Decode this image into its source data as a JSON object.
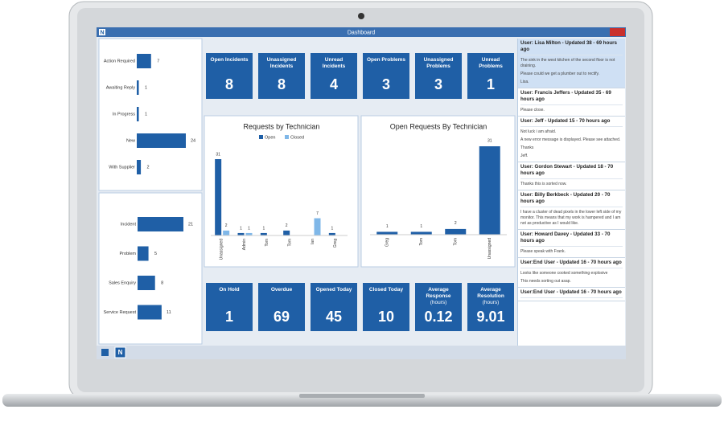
{
  "window": {
    "title": "Dashboard",
    "app_icon": "N"
  },
  "status_chart": {
    "type": "bar",
    "orientation": "horizontal",
    "color": "#1f5fa6",
    "categories": [
      "Action Required",
      "Awaiting Reply",
      "In Progress",
      "New",
      "With Supplier"
    ],
    "values": [
      7,
      1,
      1,
      24,
      2
    ]
  },
  "type_chart": {
    "type": "bar",
    "orientation": "horizontal",
    "color": "#1f5fa6",
    "categories": [
      "Incident",
      "Problem",
      "Sales Enquiry",
      "Service Request"
    ],
    "values": [
      21,
      5,
      8,
      11
    ]
  },
  "top_tiles": [
    {
      "label": "Open Incidents",
      "value": 8
    },
    {
      "label": "Unassigned Incidents",
      "value": 8
    },
    {
      "label": "Unread Incidents",
      "value": 4
    },
    {
      "label": "Open Problems",
      "value": 3
    },
    {
      "label": "Unassigned Problems",
      "value": 3
    },
    {
      "label": "Unread Problems",
      "value": 1
    }
  ],
  "bottom_tiles": [
    {
      "label": "On Hold",
      "value": 1
    },
    {
      "label": "Overdue",
      "value": 69
    },
    {
      "label": "Opened Today",
      "value": 45
    },
    {
      "label": "Closed Today",
      "value": 10
    },
    {
      "label": "Average Response",
      "sublabel": "(hours)",
      "value": 0.12
    },
    {
      "label": "Average Resolution",
      "sublabel": "(hours)",
      "value": 9.01
    }
  ],
  "requests_chart": {
    "type": "bar",
    "title": "Requests by Technician",
    "categories": [
      "Unassigned",
      "Admin",
      "Tom",
      "Tom",
      "Ian",
      "Greg"
    ],
    "series": [
      {
        "name": "Open",
        "color": "#1f5fa6",
        "values": [
          31,
          1,
          1,
          2,
          null,
          1
        ]
      },
      {
        "name": "Closed",
        "color": "#7fb7e8",
        "values": [
          2,
          1,
          null,
          null,
          7,
          null
        ]
      }
    ]
  },
  "open_requests_chart": {
    "type": "bar",
    "title": "Open Requests By Technician",
    "color": "#1f5fa6",
    "categories": [
      "Greg",
      "Tom",
      "Tom",
      "Unassigned"
    ],
    "values": [
      1,
      1,
      2,
      31
    ]
  },
  "feed": [
    {
      "header": "User: Lisa Milton - Updated 38 - 69 hours ago",
      "highlight": true,
      "body": [
        "The sink in the west kitchen of the second floor is not draining.",
        "Please could we get a plumber out to rectify.",
        "Lisa."
      ]
    },
    {
      "header": "User: Francis Jeffers - Updated 35 - 69 hours ago",
      "body": [
        "Please close."
      ]
    },
    {
      "header": "User: Jeff - Updated 15 - 70 hours ago",
      "body": [
        "Not luck i am afraid.",
        "A new error message is displayed. Please see attached.",
        "Thanks",
        "Jeff."
      ]
    },
    {
      "header": "User: Gordon Stewart - Updated 18 - 70 hours ago",
      "body": [
        "Thanks this is sorted now."
      ]
    },
    {
      "header": "User: Billy Berkbeck - Updated 20 - 70 hours ago",
      "body": [
        "I have a cluster of dead pixels in the lower left side of my monitor. This means that my work is hampered and I am not as productive as I would like."
      ]
    },
    {
      "header": "User: Howard Davey - Updated 33 - 70 hours ago",
      "body": [
        "Please speak with Frank."
      ]
    },
    {
      "header": "User:End User - Updated 16 - 70 hours ago",
      "body": [
        "Looks like someone cooked something explosive",
        "This needs sorting out asap."
      ]
    },
    {
      "header": "User:End User - Updated 16 - 70 hours ago"
    }
  ]
}
